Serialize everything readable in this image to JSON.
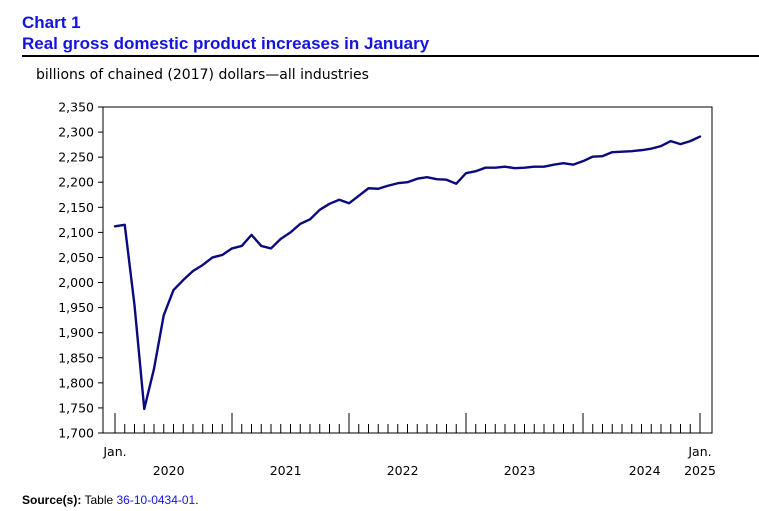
{
  "header": {
    "chart_number": "Chart 1",
    "title": "Real gross domestic product increases in January",
    "unit_label": "billions of chained (2017) dollars—all industries"
  },
  "source": {
    "label": "Source(s):",
    "text": "Table",
    "table_id": "36-10-0434-01",
    "suffix": "."
  },
  "colors": {
    "line": "#0a0a80",
    "title": "#1414e0"
  },
  "chart_data": {
    "type": "line",
    "title": "Real gross domestic product increases in January",
    "ylabel": "billions of chained (2017) dollars—all industries",
    "xlabel": "",
    "ylim": [
      1700,
      2350
    ],
    "yticks": [
      1700,
      1750,
      1800,
      1850,
      1900,
      1950,
      2000,
      2050,
      2100,
      2150,
      2200,
      2250,
      2300,
      2350
    ],
    "ytick_labels": [
      "1,700",
      "1,750",
      "1,800",
      "1,850",
      "1,900",
      "1,950",
      "2,000",
      "2,050",
      "2,100",
      "2,150",
      "2,200",
      "2,250",
      "2,300",
      "2,350"
    ],
    "grid": false,
    "x_start_label": "Jan.",
    "x_end_label": "Jan.",
    "year_labels": [
      "2020",
      "2021",
      "2022",
      "2023",
      "2024",
      "2025"
    ],
    "series": [
      {
        "name": "Real GDP, all industries",
        "start": "2020-01",
        "values": [
          2112,
          2115,
          1955,
          1748,
          1828,
          1935,
          1985,
          2005,
          2023,
          2035,
          2050,
          2055,
          2068,
          2073,
          2095,
          2073,
          2068,
          2087,
          2100,
          2117,
          2126,
          2145,
          2157,
          2165,
          2158,
          2173,
          2188,
          2187,
          2193,
          2198,
          2200,
          2207,
          2210,
          2206,
          2205,
          2197,
          2218,
          2222,
          2229,
          2229,
          2231,
          2228,
          2229,
          2231,
          2231,
          2235,
          2238,
          2235,
          2242,
          2251,
          2252,
          2260,
          2261,
          2262,
          2264,
          2267,
          2272,
          2282,
          2276,
          2282,
          2291
        ]
      }
    ]
  }
}
